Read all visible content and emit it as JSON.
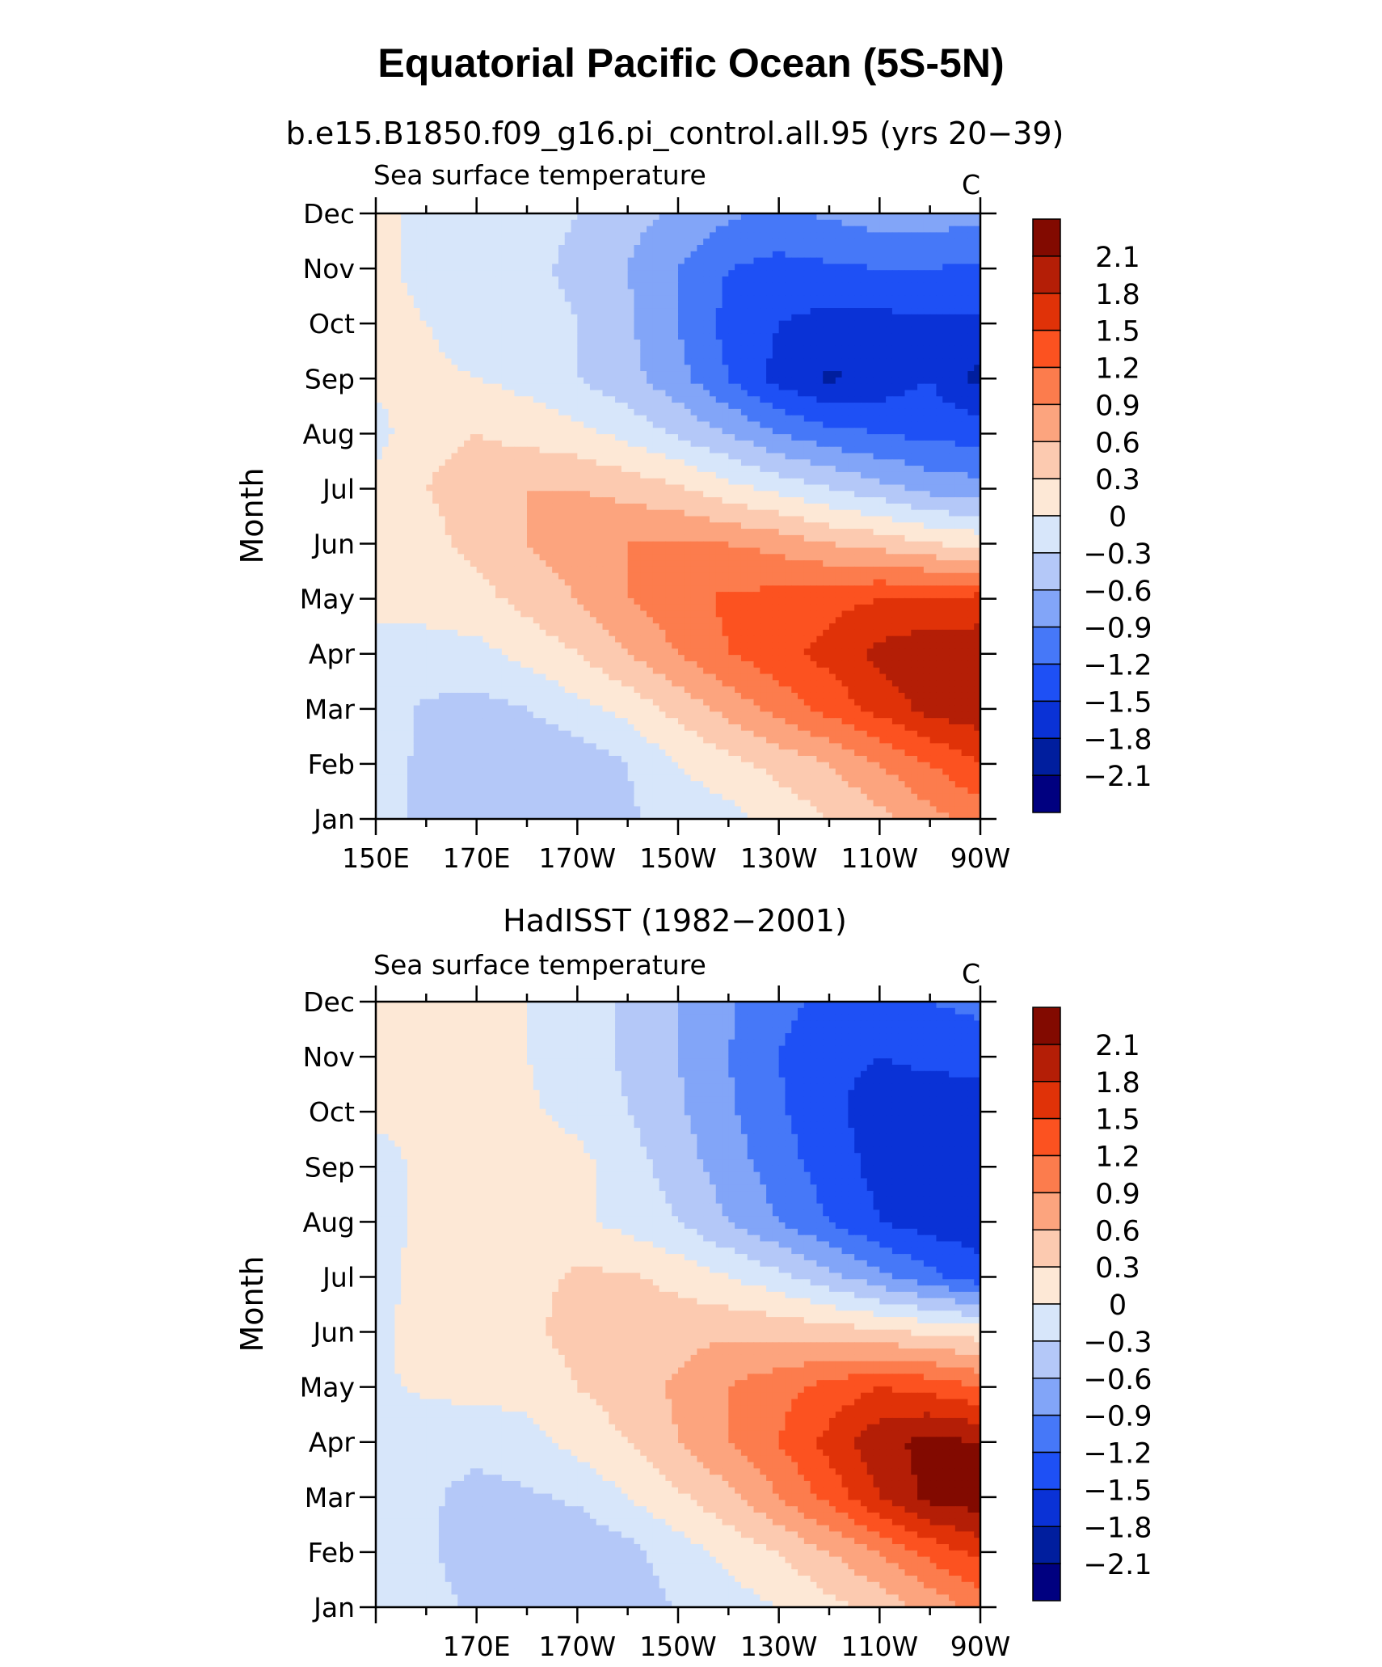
{
  "figure": {
    "title": "Equatorial Pacific Ocean (5S-5N)"
  },
  "colors": {
    "levels": [
      "#000080",
      "#001e9e",
      "#0a32d6",
      "#1e50f5",
      "#4678f8",
      "#82a5f8",
      "#b4c8f8",
      "#d7e6fa",
      "#fde8d6",
      "#fccab0",
      "#fca47e",
      "#fc7c4d",
      "#fc5220",
      "#e03208",
      "#b41e06",
      "#820a00"
    ]
  },
  "chart_data": [
    {
      "type": "heatmap",
      "title": "b.e15.B1850.f09_g16.pi_control.all.95 (yrs 20−39)",
      "variable_label": "Sea surface temperature",
      "units": "C",
      "ylabel": "Month",
      "xlabel": "",
      "x": [
        150,
        160,
        170,
        180,
        190,
        200,
        210,
        220,
        230,
        240,
        250,
        260,
        270
      ],
      "x_tick_labels": [
        "150E",
        "170E",
        "170W",
        "150W",
        "130W",
        "110W",
        "90W"
      ],
      "y": [
        "Jan",
        "Feb",
        "Mar",
        "Apr",
        "May",
        "Jun",
        "Jul",
        "Aug",
        "Sep",
        "Oct",
        "Nov",
        "Dec"
      ],
      "xlim": [
        150,
        270
      ],
      "colorbar_labels": [
        "2.1",
        "1.8",
        "1.5",
        "1.2",
        "0.9",
        "0.6",
        "0.3",
        "0",
        "−0.3",
        "−0.6",
        "−0.9",
        "−1.2",
        "−1.5",
        "−1.8",
        "−2.1"
      ],
      "values": [
        [
          -0.1,
          -0.4,
          -0.45,
          -0.5,
          -0.45,
          -0.35,
          -0.2,
          -0.1,
          0.1,
          0.3,
          0.5,
          0.8,
          1.0
        ],
        [
          -0.1,
          -0.4,
          -0.5,
          -0.55,
          -0.5,
          -0.3,
          0.0,
          0.2,
          0.4,
          0.6,
          0.9,
          1.2,
          1.5
        ],
        [
          -0.1,
          -0.35,
          -0.4,
          -0.3,
          -0.1,
          0.1,
          0.4,
          0.7,
          1.0,
          1.3,
          1.6,
          1.9,
          2.0
        ],
        [
          -0.1,
          -0.1,
          -0.1,
          0.1,
          0.3,
          0.6,
          0.9,
          1.2,
          1.4,
          1.6,
          1.9,
          2.0,
          2.0
        ],
        [
          0.1,
          0.1,
          0.2,
          0.4,
          0.6,
          0.9,
          1.1,
          1.25,
          1.3,
          1.4,
          1.5,
          1.55,
          1.6
        ],
        [
          0.1,
          0.2,
          0.4,
          0.6,
          0.8,
          0.9,
          0.95,
          0.9,
          0.8,
          0.6,
          0.5,
          0.3,
          0.2
        ],
        [
          0.1,
          0.3,
          0.45,
          0.6,
          0.6,
          0.5,
          0.35,
          0.1,
          -0.1,
          -0.3,
          -0.5,
          -0.7,
          -0.8
        ],
        [
          -0.1,
          0.2,
          0.3,
          0.2,
          0.1,
          -0.1,
          -0.35,
          -0.6,
          -0.9,
          -1.1,
          -1.2,
          -1.3,
          -1.3
        ],
        [
          0.05,
          0.05,
          0.0,
          -0.1,
          -0.3,
          -0.5,
          -0.8,
          -1.2,
          -1.6,
          -1.85,
          -1.7,
          -1.5,
          -1.9
        ],
        [
          0.1,
          0.0,
          -0.1,
          -0.2,
          -0.3,
          -0.55,
          -0.9,
          -1.3,
          -1.5,
          -1.6,
          -1.6,
          -1.55,
          -1.55
        ],
        [
          0.1,
          -0.1,
          -0.2,
          -0.25,
          -0.35,
          -0.6,
          -0.9,
          -1.2,
          -1.3,
          -1.25,
          -1.2,
          -1.2,
          -1.25
        ],
        [
          0.1,
          -0.1,
          -0.15,
          -0.2,
          -0.3,
          -0.5,
          -0.65,
          -0.85,
          -0.95,
          -0.85,
          -0.75,
          -0.75,
          -0.8
        ]
      ]
    },
    {
      "type": "heatmap",
      "title": "HadISST (1982−2001)",
      "variable_label": "Sea surface temperature",
      "units": "C",
      "ylabel": "Month",
      "xlabel": "",
      "x": [
        150,
        160,
        170,
        180,
        190,
        200,
        210,
        220,
        230,
        240,
        250,
        260,
        270
      ],
      "x_tick_labels": [
        "170E",
        "170W",
        "150W",
        "130W",
        "110W",
        "90W"
      ],
      "y": [
        "Jan",
        "Feb",
        "Mar",
        "Apr",
        "May",
        "Jun",
        "Jul",
        "Aug",
        "Sep",
        "Oct",
        "Nov",
        "Dec"
      ],
      "xlim": [
        150,
        270
      ],
      "colorbar_labels": [
        "2.1",
        "1.8",
        "1.5",
        "1.2",
        "0.9",
        "0.6",
        "0.3",
        "0",
        "−0.3",
        "−0.6",
        "−0.9",
        "−1.2",
        "−1.5",
        "−1.8",
        "−2.1"
      ],
      "values": [
        [
          -0.1,
          -0.2,
          -0.35,
          -0.45,
          -0.5,
          -0.4,
          -0.3,
          -0.15,
          0.0,
          0.2,
          0.4,
          0.7,
          1.0
        ],
        [
          -0.1,
          -0.25,
          -0.45,
          -0.55,
          -0.55,
          -0.4,
          -0.15,
          0.1,
          0.3,
          0.6,
          0.9,
          1.3,
          1.6
        ],
        [
          -0.1,
          -0.25,
          -0.4,
          -0.35,
          -0.25,
          0.0,
          0.25,
          0.5,
          0.9,
          1.3,
          1.8,
          2.2,
          2.3
        ],
        [
          -0.1,
          -0.2,
          -0.2,
          -0.1,
          0.1,
          0.3,
          0.6,
          0.9,
          1.2,
          1.6,
          2.0,
          2.2,
          2.1
        ],
        [
          -0.05,
          0.05,
          0.1,
          0.1,
          0.3,
          0.45,
          0.65,
          0.9,
          1.1,
          1.3,
          1.5,
          1.4,
          1.2
        ],
        [
          -0.05,
          0.1,
          0.15,
          0.25,
          0.4,
          0.45,
          0.5,
          0.55,
          0.5,
          0.45,
          0.35,
          0.25,
          0.15
        ],
        [
          -0.1,
          0.1,
          0.1,
          0.2,
          0.35,
          0.35,
          0.2,
          0.0,
          -0.2,
          -0.5,
          -0.8,
          -1.1,
          -1.4
        ],
        [
          -0.15,
          0.1,
          0.15,
          0.15,
          0.05,
          -0.1,
          -0.3,
          -0.6,
          -0.9,
          -1.2,
          -1.5,
          -1.65,
          -1.65
        ],
        [
          -0.1,
          0.05,
          0.3,
          0.25,
          0.1,
          -0.15,
          -0.45,
          -0.75,
          -1.05,
          -1.35,
          -1.6,
          -1.7,
          -1.7
        ],
        [
          0.05,
          0.1,
          0.1,
          0.05,
          -0.1,
          -0.3,
          -0.55,
          -0.85,
          -1.15,
          -1.45,
          -1.6,
          -1.65,
          -1.65
        ],
        [
          0.05,
          0.1,
          0.1,
          0.0,
          -0.15,
          -0.35,
          -0.6,
          -0.9,
          -1.2,
          -1.45,
          -1.5,
          -1.45,
          -1.4
        ],
        [
          0.05,
          0.1,
          0.05,
          0.0,
          -0.15,
          -0.35,
          -0.6,
          -0.85,
          -1.1,
          -1.3,
          -1.3,
          -1.2,
          -1.1
        ]
      ]
    }
  ]
}
